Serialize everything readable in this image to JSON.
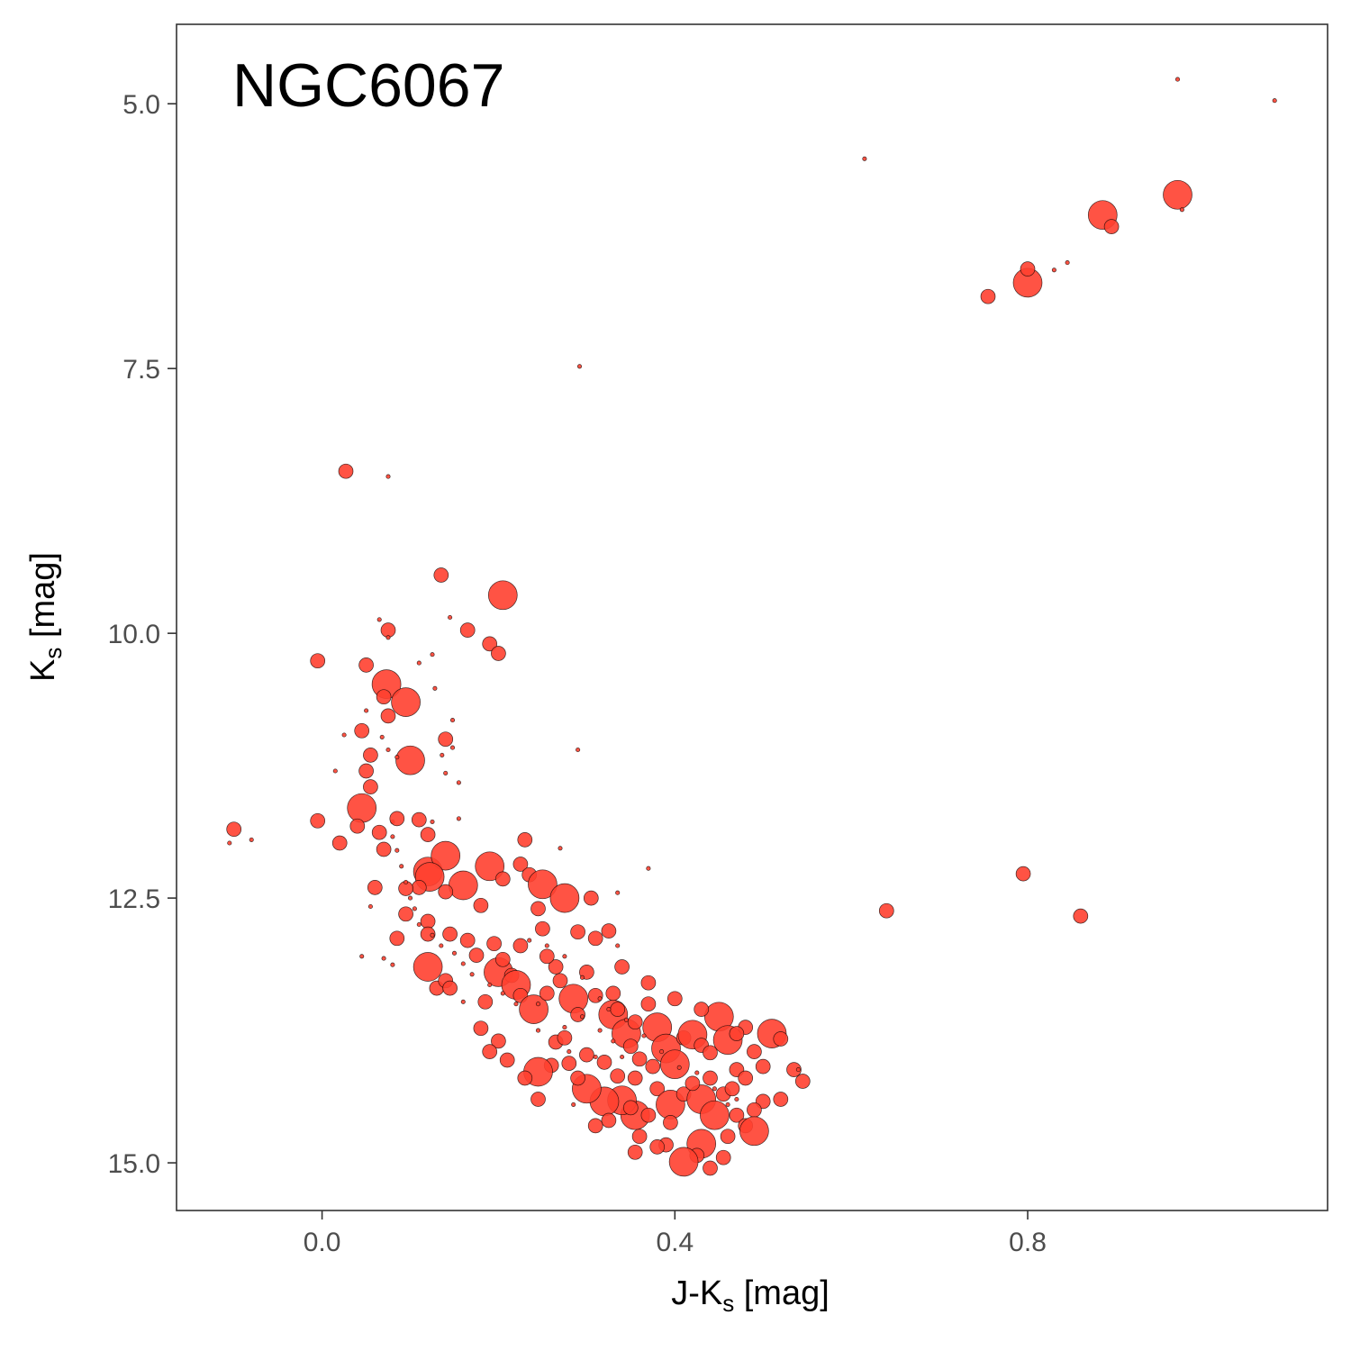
{
  "chart_data": {
    "type": "scatter",
    "title": "",
    "annotation": "NGC6067",
    "xlabel": {
      "main": "J-K",
      "sub": "s",
      "suffix": " [mag]"
    },
    "ylabel": {
      "main": "K",
      "sub": "s",
      "suffix": " [mag]"
    },
    "xlim": [
      -0.165,
      1.14
    ],
    "ylim": [
      15.45,
      4.25
    ],
    "y_reversed": true,
    "x_ticks": [
      0.0,
      0.4,
      0.8
    ],
    "x_tick_labels": [
      "0.0",
      "0.4",
      "0.8"
    ],
    "y_ticks": [
      5.0,
      7.5,
      10.0,
      12.5,
      15.0
    ],
    "y_tick_labels": [
      "5.0",
      "7.5",
      "10.0",
      "12.5",
      "15.0"
    ],
    "grid": false,
    "legend": "none",
    "point_color": "#ff4030",
    "point_edge_color": "#000000",
    "series": [
      {
        "points": [
          [
            0.97,
            4.77,
            1
          ],
          [
            1.08,
            4.97,
            1
          ],
          [
            0.615,
            5.52,
            1
          ],
          [
            0.97,
            5.86,
            3
          ],
          [
            0.975,
            6.0,
            1
          ],
          [
            0.885,
            6.05,
            3
          ],
          [
            0.895,
            6.16,
            2
          ],
          [
            0.8,
            6.69,
            3
          ],
          [
            0.8,
            6.56,
            2
          ],
          [
            0.83,
            6.57,
            1
          ],
          [
            0.845,
            6.5,
            1
          ],
          [
            0.755,
            6.82,
            2
          ],
          [
            0.292,
            7.48,
            1
          ],
          [
            0.027,
            8.47,
            2
          ],
          [
            0.075,
            8.52,
            1
          ],
          [
            0.135,
            9.45,
            2
          ],
          [
            0.205,
            9.64,
            3
          ],
          [
            0.065,
            9.87,
            1
          ],
          [
            0.145,
            9.85,
            1
          ],
          [
            0.165,
            9.97,
            2
          ],
          [
            0.075,
            9.97,
            2
          ],
          [
            0.075,
            10.04,
            1
          ],
          [
            0.19,
            10.1,
            2
          ],
          [
            0.2,
            10.19,
            2
          ],
          [
            -0.005,
            10.26,
            2
          ],
          [
            0.05,
            10.3,
            2
          ],
          [
            0.11,
            10.28,
            1
          ],
          [
            0.125,
            10.2,
            1
          ],
          [
            0.073,
            10.48,
            3
          ],
          [
            0.07,
            10.6,
            2
          ],
          [
            0.095,
            10.65,
            3
          ],
          [
            0.128,
            10.52,
            1
          ],
          [
            0.05,
            10.73,
            1
          ],
          [
            0.075,
            10.78,
            2
          ],
          [
            0.148,
            10.82,
            1
          ],
          [
            0.045,
            10.92,
            2
          ],
          [
            0.025,
            10.96,
            1
          ],
          [
            0.068,
            10.98,
            1
          ],
          [
            0.1,
            11.2,
            3
          ],
          [
            0.14,
            11.0,
            2
          ],
          [
            0.055,
            11.15,
            2
          ],
          [
            0.075,
            11.1,
            1
          ],
          [
            0.085,
            11.17,
            1
          ],
          [
            0.148,
            11.08,
            1
          ],
          [
            0.136,
            11.15,
            1
          ],
          [
            0.29,
            11.1,
            1
          ],
          [
            0.05,
            11.3,
            2
          ],
          [
            0.055,
            11.45,
            2
          ],
          [
            0.015,
            11.3,
            1
          ],
          [
            0.14,
            11.32,
            1
          ],
          [
            0.155,
            11.41,
            1
          ],
          [
            0.045,
            11.65,
            3
          ],
          [
            -0.1,
            11.85,
            2
          ],
          [
            -0.105,
            11.98,
            1
          ],
          [
            -0.08,
            11.95,
            1
          ],
          [
            -0.005,
            11.77,
            2
          ],
          [
            0.04,
            11.82,
            2
          ],
          [
            0.065,
            11.88,
            2
          ],
          [
            0.08,
            11.78,
            1
          ],
          [
            0.02,
            11.98,
            2
          ],
          [
            0.07,
            12.04,
            2
          ],
          [
            0.085,
            11.75,
            2
          ],
          [
            0.11,
            11.76,
            2
          ],
          [
            0.12,
            11.9,
            2
          ],
          [
            0.125,
            11.78,
            1
          ],
          [
            0.155,
            11.75,
            1
          ],
          [
            0.27,
            12.03,
            1
          ],
          [
            0.12,
            12.25,
            3
          ],
          [
            0.14,
            12.1,
            3
          ],
          [
            0.122,
            12.3,
            3
          ],
          [
            0.19,
            12.2,
            3
          ],
          [
            0.225,
            12.18,
            2
          ],
          [
            0.235,
            12.28,
            2
          ],
          [
            0.205,
            12.32,
            2
          ],
          [
            0.25,
            12.37,
            3
          ],
          [
            0.16,
            12.38,
            3
          ],
          [
            0.06,
            12.4,
            2
          ],
          [
            0.11,
            12.4,
            2
          ],
          [
            0.095,
            12.41,
            2
          ],
          [
            0.14,
            12.44,
            2
          ],
          [
            0.335,
            12.45,
            1
          ],
          [
            0.275,
            12.5,
            3
          ],
          [
            0.245,
            12.6,
            2
          ],
          [
            0.18,
            12.57,
            2
          ],
          [
            0.055,
            12.58,
            1
          ],
          [
            0.095,
            12.65,
            2
          ],
          [
            0.085,
            12.88,
            2
          ],
          [
            0.12,
            12.72,
            2
          ],
          [
            0.12,
            12.84,
            2
          ],
          [
            0.145,
            12.84,
            2
          ],
          [
            0.165,
            12.9,
            2
          ],
          [
            0.195,
            12.93,
            2
          ],
          [
            0.175,
            13.04,
            2
          ],
          [
            0.25,
            12.79,
            2
          ],
          [
            0.29,
            12.82,
            2
          ],
          [
            0.325,
            12.81,
            2
          ],
          [
            0.335,
            12.95,
            1
          ],
          [
            0.64,
            12.62,
            2
          ],
          [
            0.795,
            12.27,
            2
          ],
          [
            0.86,
            12.67,
            2
          ],
          [
            0.045,
            13.05,
            1
          ],
          [
            0.07,
            13.07,
            1
          ],
          [
            0.08,
            13.13,
            1
          ],
          [
            0.12,
            13.15,
            3
          ],
          [
            0.13,
            13.35,
            2
          ],
          [
            0.14,
            13.28,
            2
          ],
          [
            0.145,
            13.35,
            2
          ],
          [
            0.16,
            13.48,
            1
          ],
          [
            0.185,
            13.48,
            2
          ],
          [
            0.2,
            13.2,
            3
          ],
          [
            0.215,
            13.23,
            2
          ],
          [
            0.22,
            13.32,
            3
          ],
          [
            0.225,
            13.42,
            2
          ],
          [
            0.24,
            13.55,
            3
          ],
          [
            0.255,
            13.4,
            2
          ],
          [
            0.27,
            13.28,
            2
          ],
          [
            0.285,
            13.45,
            3
          ],
          [
            0.29,
            13.6,
            2
          ],
          [
            0.31,
            13.42,
            2
          ],
          [
            0.33,
            13.6,
            3
          ],
          [
            0.345,
            13.78,
            3
          ],
          [
            0.355,
            13.67,
            2
          ],
          [
            0.37,
            13.5,
            2
          ],
          [
            0.38,
            13.72,
            3
          ],
          [
            0.39,
            13.92,
            3
          ],
          [
            0.4,
            14.07,
            3
          ],
          [
            0.41,
            13.82,
            2
          ],
          [
            0.42,
            13.79,
            3
          ],
          [
            0.43,
            13.89,
            2
          ],
          [
            0.44,
            13.96,
            2
          ],
          [
            0.45,
            13.62,
            3
          ],
          [
            0.46,
            13.84,
            3
          ],
          [
            0.47,
            14.12,
            2
          ],
          [
            0.48,
            13.72,
            2
          ],
          [
            0.49,
            13.95,
            2
          ],
          [
            0.5,
            14.09,
            2
          ],
          [
            0.51,
            13.78,
            3
          ],
          [
            0.52,
            13.83,
            2
          ],
          [
            0.535,
            14.12,
            2
          ],
          [
            0.545,
            14.23,
            2
          ],
          [
            0.52,
            14.4,
            2
          ],
          [
            0.5,
            14.42,
            2
          ],
          [
            0.49,
            14.5,
            2
          ],
          [
            0.47,
            14.55,
            2
          ],
          [
            0.48,
            14.65,
            2
          ],
          [
            0.49,
            14.7,
            3
          ],
          [
            0.46,
            14.75,
            2
          ],
          [
            0.43,
            14.82,
            3
          ],
          [
            0.425,
            14.93,
            2
          ],
          [
            0.41,
            14.99,
            3
          ],
          [
            0.39,
            14.83,
            2
          ],
          [
            0.36,
            14.75,
            2
          ],
          [
            0.355,
            14.55,
            3
          ],
          [
            0.34,
            14.41,
            3
          ],
          [
            0.32,
            14.42,
            3
          ],
          [
            0.3,
            14.3,
            3
          ],
          [
            0.29,
            14.2,
            2
          ],
          [
            0.28,
            14.06,
            2
          ],
          [
            0.26,
            14.08,
            2
          ],
          [
            0.245,
            14.14,
            3
          ],
          [
            0.23,
            14.2,
            2
          ],
          [
            0.21,
            14.03,
            2
          ],
          [
            0.2,
            13.85,
            2
          ],
          [
            0.19,
            13.95,
            2
          ],
          [
            0.18,
            13.73,
            2
          ],
          [
            0.265,
            13.86,
            2
          ],
          [
            0.275,
            13.82,
            2
          ],
          [
            0.3,
            13.98,
            2
          ],
          [
            0.32,
            14.05,
            2
          ],
          [
            0.335,
            14.18,
            2
          ],
          [
            0.355,
            14.2,
            2
          ],
          [
            0.375,
            14.09,
            2
          ],
          [
            0.38,
            14.3,
            2
          ],
          [
            0.395,
            14.45,
            3
          ],
          [
            0.41,
            14.35,
            2
          ],
          [
            0.43,
            14.4,
            3
          ],
          [
            0.445,
            14.55,
            3
          ],
          [
            0.455,
            14.35,
            2
          ],
          [
            0.465,
            14.3,
            2
          ],
          [
            0.44,
            14.2,
            2
          ],
          [
            0.42,
            14.25,
            2
          ],
          [
            0.395,
            14.62,
            2
          ],
          [
            0.37,
            14.55,
            2
          ],
          [
            0.35,
            14.48,
            2
          ],
          [
            0.325,
            14.6,
            2
          ],
          [
            0.31,
            14.65,
            2
          ],
          [
            0.245,
            14.4,
            2
          ],
          [
            0.285,
            14.45,
            1
          ],
          [
            0.355,
            14.9,
            2
          ],
          [
            0.38,
            14.85,
            2
          ],
          [
            0.44,
            15.05,
            2
          ],
          [
            0.455,
            14.95,
            2
          ],
          [
            0.3,
            13.2,
            2
          ],
          [
            0.33,
            13.4,
            2
          ],
          [
            0.265,
            13.15,
            2
          ],
          [
            0.255,
            13.05,
            2
          ],
          [
            0.225,
            12.95,
            2
          ],
          [
            0.205,
            13.08,
            2
          ],
          [
            0.335,
            13.55,
            2
          ],
          [
            0.35,
            13.9,
            2
          ],
          [
            0.36,
            14.02,
            2
          ],
          [
            0.34,
            14.0,
            1
          ],
          [
            0.31,
            14.0,
            1
          ],
          [
            0.28,
            13.95,
            1
          ],
          [
            0.245,
            13.75,
            1
          ],
          [
            0.275,
            13.72,
            1
          ],
          [
            0.295,
            13.62,
            1
          ],
          [
            0.315,
            13.75,
            1
          ],
          [
            0.33,
            13.85,
            1
          ],
          [
            0.245,
            13.5,
            1
          ],
          [
            0.22,
            13.5,
            1
          ],
          [
            0.205,
            13.4,
            1
          ],
          [
            0.19,
            13.32,
            1
          ],
          [
            0.17,
            13.22,
            1
          ],
          [
            0.16,
            13.12,
            1
          ],
          [
            0.15,
            13.02,
            1
          ],
          [
            0.135,
            12.95,
            1
          ],
          [
            0.125,
            12.85,
            1
          ],
          [
            0.11,
            12.75,
            1
          ],
          [
            0.105,
            12.6,
            1
          ],
          [
            0.1,
            12.5,
            1
          ],
          [
            0.095,
            12.35,
            1
          ],
          [
            0.09,
            12.2,
            1
          ],
          [
            0.085,
            12.05,
            1
          ],
          [
            0.08,
            11.92,
            1
          ],
          [
            0.235,
            12.9,
            1
          ],
          [
            0.255,
            12.95,
            1
          ],
          [
            0.275,
            13.05,
            1
          ],
          [
            0.295,
            13.25,
            1
          ],
          [
            0.315,
            13.45,
            1
          ],
          [
            0.325,
            13.55,
            1
          ],
          [
            0.345,
            13.65,
            1
          ],
          [
            0.365,
            13.8,
            1
          ],
          [
            0.385,
            13.95,
            1
          ],
          [
            0.405,
            14.1,
            1
          ],
          [
            0.425,
            14.15,
            1
          ],
          [
            0.445,
            14.3,
            1
          ],
          [
            0.46,
            14.45,
            1
          ],
          [
            0.47,
            14.4,
            1
          ],
          [
            0.37,
            12.22,
            1
          ],
          [
            0.23,
            11.95,
            2
          ],
          [
            0.305,
            12.5,
            2
          ],
          [
            0.31,
            12.88,
            2
          ],
          [
            0.34,
            13.15,
            2
          ],
          [
            0.37,
            13.3,
            2
          ],
          [
            0.4,
            13.45,
            2
          ],
          [
            0.43,
            13.55,
            2
          ],
          [
            0.47,
            13.78,
            2
          ],
          [
            0.48,
            14.2,
            2
          ],
          [
            0.54,
            14.12,
            1
          ]
        ]
      }
    ]
  }
}
